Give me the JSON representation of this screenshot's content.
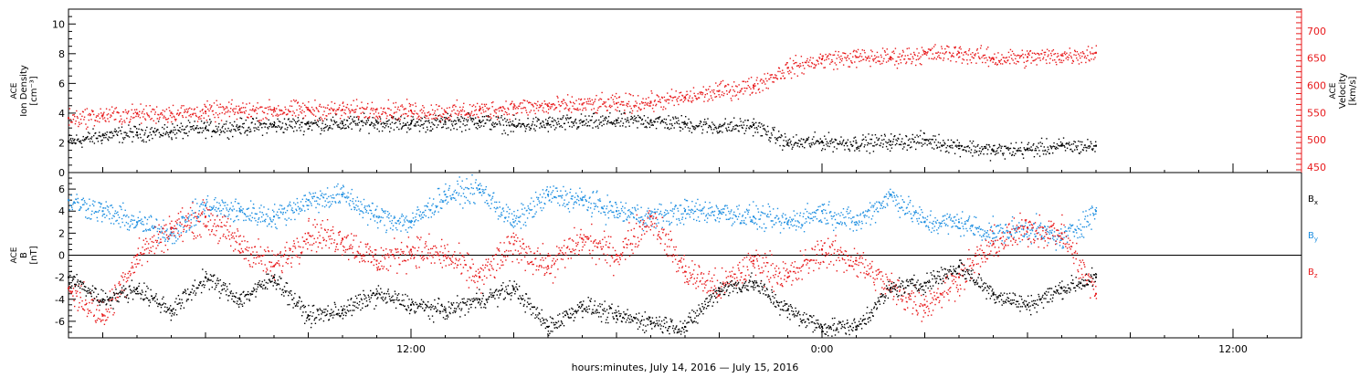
{
  "chart_data": [
    {
      "type": "scatter",
      "panel": "top",
      "ylabel_lines": [
        "ACE",
        "Ion Density",
        "[cm⁻³]"
      ],
      "ylim": [
        0,
        11
      ],
      "yticks": [
        0,
        2,
        4,
        6,
        8,
        10
      ],
      "y2label_lines": [
        "ACE",
        "Velocity",
        "[km/s]"
      ],
      "y2lim": [
        440,
        740
      ],
      "y2ticks": [
        450,
        500,
        550,
        600,
        650,
        700
      ],
      "x_unit": "hours since 00:00 July 14, 2016",
      "series": [
        {
          "axis": "left",
          "color": "#000000",
          "x": [
            2.0,
            3.0,
            4.0,
            5.0,
            6.0,
            7.0,
            8.0,
            9.0,
            10.0,
            11.0,
            12.0,
            13.0,
            14.0,
            15.0,
            16.0,
            17.0,
            18.0,
            19.0,
            20.0,
            21.0,
            22.0,
            23.0,
            24.0,
            25.0,
            26.0,
            27.0,
            28.0,
            29.0,
            30.0,
            31.0,
            32.0
          ],
          "y": [
            2.1,
            2.5,
            2.7,
            2.8,
            3.0,
            3.1,
            3.2,
            3.3,
            3.3,
            3.4,
            3.3,
            3.4,
            3.5,
            3.2,
            3.3,
            3.4,
            3.5,
            3.5,
            3.3,
            3.1,
            3.2,
            2.0,
            2.1,
            2.0,
            2.1,
            2.2,
            1.8,
            1.5,
            1.6,
            1.8,
            1.8
          ]
        },
        {
          "axis": "right",
          "color": "#e8191b",
          "x": [
            2.0,
            3.0,
            4.0,
            5.0,
            6.0,
            7.0,
            8.0,
            9.0,
            10.0,
            11.0,
            12.0,
            13.0,
            14.0,
            15.0,
            16.0,
            17.0,
            18.0,
            19.0,
            20.0,
            21.0,
            22.0,
            23.0,
            24.0,
            25.0,
            26.0,
            27.0,
            28.0,
            29.0,
            30.0,
            31.0,
            32.0
          ],
          "y": [
            540,
            545,
            548,
            550,
            552,
            555,
            555,
            556,
            555,
            556,
            554,
            552,
            555,
            560,
            562,
            565,
            567,
            570,
            578,
            590,
            600,
            632,
            648,
            652,
            652,
            658,
            660,
            650,
            652,
            655,
            660
          ]
        }
      ]
    },
    {
      "type": "scatter",
      "panel": "bottom",
      "ylabel_lines": [
        "ACE",
        "B",
        "[nT]"
      ],
      "ylim": [
        -7.5,
        7.5
      ],
      "yticks": [
        -6,
        -4,
        -2,
        0,
        2,
        4,
        6
      ],
      "xticks": [
        12,
        24,
        36
      ],
      "xtick_labels": [
        "12:00",
        "0:00",
        "12:00"
      ],
      "xlim": [
        2.0,
        38.0
      ],
      "xlabel": "hours:minutes, July 14, 2016 — July 15, 2016",
      "series": [
        {
          "name": "Bx",
          "color": "#000000",
          "x": [
            2.0,
            3.0,
            4.0,
            5.0,
            6.0,
            7.0,
            8.0,
            9.0,
            10.0,
            11.0,
            12.0,
            13.0,
            14.0,
            15.0,
            16.0,
            17.0,
            18.0,
            19.0,
            20.0,
            21.0,
            22.0,
            23.0,
            24.0,
            25.0,
            26.0,
            27.0,
            28.0,
            29.0,
            30.0,
            31.0,
            32.0
          ],
          "y": [
            -2.0,
            -4.0,
            -3.0,
            -5.0,
            -2.0,
            -4.0,
            -2.0,
            -5.5,
            -5.0,
            -3.5,
            -4.5,
            -5.0,
            -4.0,
            -3.0,
            -6.5,
            -4.5,
            -5.5,
            -6.0,
            -6.5,
            -3.0,
            -2.5,
            -5.0,
            -6.5,
            -6.5,
            -3.0,
            -2.5,
            -1.0,
            -3.5,
            -4.5,
            -3.0,
            -2.0
          ]
        },
        {
          "name": "By",
          "color": "#1e8fe1",
          "x": [
            2.0,
            3.0,
            4.0,
            5.0,
            6.0,
            7.0,
            8.0,
            9.0,
            10.0,
            11.0,
            12.0,
            13.0,
            14.0,
            15.0,
            16.0,
            17.0,
            18.0,
            19.0,
            20.0,
            21.0,
            22.0,
            23.0,
            24.0,
            25.0,
            26.0,
            27.0,
            28.0,
            29.0,
            30.0,
            31.0,
            32.0
          ],
          "y": [
            5.0,
            4.0,
            3.0,
            2.0,
            4.5,
            4.0,
            3.5,
            5.0,
            5.5,
            3.5,
            3.0,
            5.5,
            6.0,
            3.0,
            5.5,
            5.0,
            4.0,
            3.5,
            4.0,
            4.0,
            3.5,
            3.0,
            4.0,
            3.0,
            5.5,
            3.0,
            3.0,
            2.0,
            2.5,
            1.5,
            4.0
          ]
        },
        {
          "name": "Bz",
          "color": "#e8191b",
          "x": [
            2.0,
            3.0,
            4.0,
            5.0,
            6.0,
            7.0,
            8.0,
            9.0,
            10.0,
            11.0,
            12.0,
            13.0,
            14.0,
            15.0,
            16.0,
            17.0,
            18.0,
            19.0,
            20.0,
            21.0,
            22.0,
            23.0,
            24.0,
            25.0,
            26.0,
            27.0,
            28.0,
            29.0,
            30.0,
            31.0,
            32.0
          ],
          "y": [
            -3.0,
            -5.5,
            0.0,
            2.5,
            3.5,
            1.0,
            -1.0,
            2.0,
            1.5,
            -0.5,
            0.5,
            0.0,
            -2.0,
            1.0,
            -1.0,
            1.5,
            0.0,
            3.5,
            -1.5,
            -3.0,
            -0.5,
            -2.0,
            0.5,
            -0.5,
            -3.0,
            -4.5,
            -2.0,
            1.0,
            2.5,
            2.0,
            -3.5
          ]
        }
      ],
      "legend_placement": "right",
      "legend_color_names": [
        "black",
        "blue",
        "red"
      ]
    }
  ]
}
